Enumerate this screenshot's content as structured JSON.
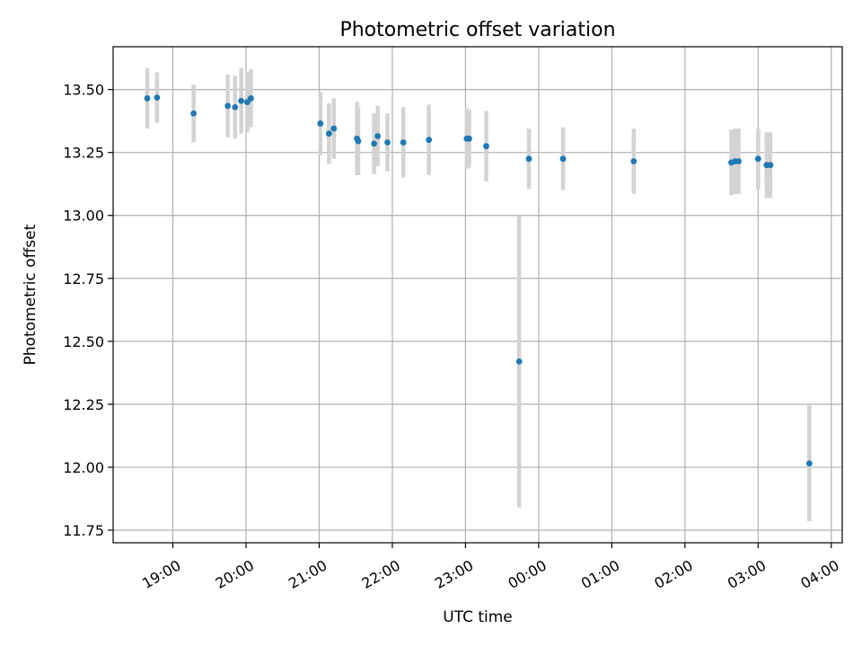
{
  "chart_data": {
    "type": "scatter",
    "title": "Photometric offset variation",
    "xlabel": "UTC time",
    "ylabel": "Photometric offset",
    "x_range": [
      "2000-01-01T18:11:00",
      "2000-01-02T04:09:00"
    ],
    "ylim": [
      11.7,
      13.67
    ],
    "x_ticks": [
      {
        "t": "2000-01-01T19:00:00",
        "label": "19:00"
      },
      {
        "t": "2000-01-01T20:00:00",
        "label": "20:00"
      },
      {
        "t": "2000-01-01T21:00:00",
        "label": "21:00"
      },
      {
        "t": "2000-01-01T22:00:00",
        "label": "22:00"
      },
      {
        "t": "2000-01-01T23:00:00",
        "label": "23:00"
      },
      {
        "t": "2000-01-02T00:00:00",
        "label": "00:00"
      },
      {
        "t": "2000-01-02T01:00:00",
        "label": "01:00"
      },
      {
        "t": "2000-01-02T02:00:00",
        "label": "02:00"
      },
      {
        "t": "2000-01-02T03:00:00",
        "label": "03:00"
      },
      {
        "t": "2000-01-02T04:00:00",
        "label": "04:00"
      }
    ],
    "y_ticks": [
      {
        "value": 11.75,
        "label": "11.75"
      },
      {
        "value": 12.0,
        "label": "12.00"
      },
      {
        "value": 12.25,
        "label": "12.25"
      },
      {
        "value": 12.5,
        "label": "12.50"
      },
      {
        "value": 12.75,
        "label": "12.75"
      },
      {
        "value": 13.0,
        "label": "13.00"
      },
      {
        "value": 13.25,
        "label": "13.25"
      },
      {
        "value": 13.5,
        "label": "13.50"
      }
    ],
    "grid": true,
    "colors": {
      "point": "#1f77b4",
      "errorbar": "#d3d3d3",
      "grid": "#b0b0b0"
    },
    "points": [
      {
        "t": "2000-01-01T18:39:00",
        "y": 13.465,
        "err": 0.12
      },
      {
        "t": "2000-01-01T18:47:00",
        "y": 13.468,
        "err": 0.1
      },
      {
        "t": "2000-01-01T19:17:00",
        "y": 13.405,
        "err": 0.115
      },
      {
        "t": "2000-01-01T19:45:00",
        "y": 13.435,
        "err": 0.125
      },
      {
        "t": "2000-01-01T19:51:00",
        "y": 13.43,
        "err": 0.125
      },
      {
        "t": "2000-01-01T19:56:00",
        "y": 13.455,
        "err": 0.13
      },
      {
        "t": "2000-01-01T20:01:00",
        "y": 13.45,
        "err": 0.12
      },
      {
        "t": "2000-01-01T20:04:00",
        "y": 13.465,
        "err": 0.115
      },
      {
        "t": "2000-01-01T21:01:00",
        "y": 13.365,
        "err": 0.125
      },
      {
        "t": "2000-01-01T21:08:00",
        "y": 13.325,
        "err": 0.12
      },
      {
        "t": "2000-01-01T21:12:00",
        "y": 13.345,
        "err": 0.12
      },
      {
        "t": "2000-01-01T21:31:00",
        "y": 13.305,
        "err": 0.145
      },
      {
        "t": "2000-01-01T21:32:00",
        "y": 13.295,
        "err": 0.135
      },
      {
        "t": "2000-01-01T21:45:00",
        "y": 13.285,
        "err": 0.12
      },
      {
        "t": "2000-01-01T21:48:00",
        "y": 13.315,
        "err": 0.12
      },
      {
        "t": "2000-01-01T21:56:00",
        "y": 13.29,
        "err": 0.115
      },
      {
        "t": "2000-01-01T22:09:00",
        "y": 13.29,
        "err": 0.14
      },
      {
        "t": "2000-01-01T22:30:00",
        "y": 13.3,
        "err": 0.14
      },
      {
        "t": "2000-01-01T23:01:00",
        "y": 13.305,
        "err": 0.12
      },
      {
        "t": "2000-01-01T23:03:00",
        "y": 13.305,
        "err": 0.115
      },
      {
        "t": "2000-01-01T23:17:00",
        "y": 13.275,
        "err": 0.14
      },
      {
        "t": "2000-01-01T23:44:00",
        "y": 12.42,
        "err": 0.58
      },
      {
        "t": "2000-01-01T23:52:00",
        "y": 13.225,
        "err": 0.12
      },
      {
        "t": "2000-01-02T00:20:00",
        "y": 13.225,
        "err": 0.125
      },
      {
        "t": "2000-01-02T01:18:00",
        "y": 13.215,
        "err": 0.13
      },
      {
        "t": "2000-01-02T02:38:00",
        "y": 13.21,
        "err": 0.13
      },
      {
        "t": "2000-01-02T02:41:00",
        "y": 13.215,
        "err": 0.13
      },
      {
        "t": "2000-01-02T02:44:00",
        "y": 13.215,
        "err": 0.13
      },
      {
        "t": "2000-01-02T03:00:00",
        "y": 13.225,
        "err": 0.12
      },
      {
        "t": "2000-01-02T03:07:00",
        "y": 13.2,
        "err": 0.13
      },
      {
        "t": "2000-01-02T03:10:00",
        "y": 13.2,
        "err": 0.13
      },
      {
        "t": "2000-01-02T03:42:00",
        "y": 12.015,
        "err": 0.23
      }
    ]
  }
}
